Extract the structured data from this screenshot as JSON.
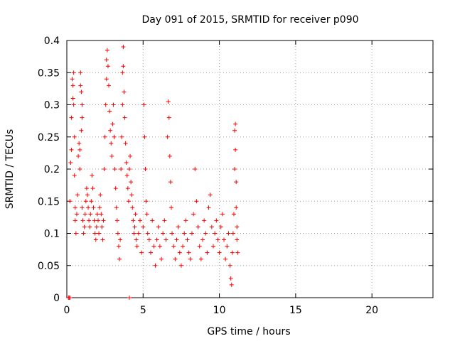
{
  "chart_data": {
    "type": "scatter",
    "title": "Day 091 of 2015, SRMTID for receiver p090",
    "xlabel": "GPS time / hours",
    "ylabel": "SRMTID / TECUs",
    "xlim": [
      0,
      24
    ],
    "ylim": [
      0,
      0.4
    ],
    "xticks": [
      0,
      5,
      10,
      15,
      20
    ],
    "xtick_labels": [
      "0",
      "5",
      "10",
      "15",
      "20"
    ],
    "yticks": [
      0,
      0.05,
      0.1,
      0.15,
      0.2,
      0.25,
      0.3,
      0.35,
      0.4
    ],
    "ytick_labels": [
      "0",
      "0.05",
      "0.1",
      "0.15",
      "0.2",
      "0.25",
      "0.3",
      "0.35",
      "0.4"
    ],
    "grid": true,
    "marker": "+",
    "series": [
      {
        "name": "SRMTID",
        "color": "#ff0000",
        "points": [
          [
            0.1,
            0.0
          ],
          [
            0.15,
            0.0
          ],
          [
            0.2,
            0.0
          ],
          [
            4.1,
            0.0
          ],
          [
            0.2,
            0.15
          ],
          [
            0.25,
            0.21
          ],
          [
            0.3,
            0.23
          ],
          [
            0.3,
            0.28
          ],
          [
            0.35,
            0.34
          ],
          [
            0.4,
            0.33
          ],
          [
            0.4,
            0.31
          ],
          [
            0.45,
            0.35
          ],
          [
            0.45,
            0.3
          ],
          [
            0.5,
            0.25
          ],
          [
            0.5,
            0.19
          ],
          [
            0.55,
            0.14
          ],
          [
            0.55,
            0.12
          ],
          [
            0.6,
            0.1
          ],
          [
            0.65,
            0.13
          ],
          [
            0.7,
            0.16
          ],
          [
            0.75,
            0.22
          ],
          [
            0.8,
            0.24
          ],
          [
            0.85,
            0.23
          ],
          [
            0.85,
            0.2
          ],
          [
            0.9,
            0.35
          ],
          [
            0.9,
            0.33
          ],
          [
            0.95,
            0.32
          ],
          [
            1.0,
            0.3
          ],
          [
            1.0,
            0.28
          ],
          [
            0.95,
            0.26
          ],
          [
            1.0,
            0.14
          ],
          [
            1.05,
            0.12
          ],
          [
            1.1,
            0.1
          ],
          [
            1.15,
            0.11
          ],
          [
            1.2,
            0.13
          ],
          [
            1.25,
            0.15
          ],
          [
            1.3,
            0.17
          ],
          [
            1.35,
            0.16
          ],
          [
            1.4,
            0.14
          ],
          [
            1.45,
            0.12
          ],
          [
            1.5,
            0.11
          ],
          [
            1.55,
            0.13
          ],
          [
            1.6,
            0.15
          ],
          [
            1.65,
            0.19
          ],
          [
            1.7,
            0.17
          ],
          [
            1.75,
            0.14
          ],
          [
            1.8,
            0.12
          ],
          [
            1.85,
            0.1
          ],
          [
            1.9,
            0.09
          ],
          [
            1.95,
            0.11
          ],
          [
            2.0,
            0.13
          ],
          [
            2.05,
            0.12
          ],
          [
            2.1,
            0.1
          ],
          [
            2.15,
            0.14
          ],
          [
            2.2,
            0.16
          ],
          [
            2.25,
            0.13
          ],
          [
            2.3,
            0.11
          ],
          [
            2.35,
            0.09
          ],
          [
            2.4,
            0.12
          ],
          [
            2.45,
            0.2
          ],
          [
            2.5,
            0.25
          ],
          [
            2.55,
            0.3
          ],
          [
            2.6,
            0.34
          ],
          [
            2.6,
            0.37
          ],
          [
            2.65,
            0.385
          ],
          [
            2.7,
            0.36
          ],
          [
            2.75,
            0.33
          ],
          [
            2.8,
            0.29
          ],
          [
            2.85,
            0.26
          ],
          [
            2.9,
            0.24
          ],
          [
            2.95,
            0.22
          ],
          [
            3.0,
            0.27
          ],
          [
            3.05,
            0.3
          ],
          [
            3.1,
            0.25
          ],
          [
            3.15,
            0.2
          ],
          [
            3.2,
            0.17
          ],
          [
            3.25,
            0.14
          ],
          [
            3.3,
            0.12
          ],
          [
            3.35,
            0.1
          ],
          [
            3.4,
            0.08
          ],
          [
            3.45,
            0.06
          ],
          [
            3.5,
            0.09
          ],
          [
            3.55,
            0.2
          ],
          [
            3.6,
            0.25
          ],
          [
            3.65,
            0.3
          ],
          [
            3.65,
            0.35
          ],
          [
            3.7,
            0.39
          ],
          [
            3.7,
            0.36
          ],
          [
            3.75,
            0.32
          ],
          [
            3.8,
            0.28
          ],
          [
            3.85,
            0.24
          ],
          [
            3.9,
            0.21
          ],
          [
            3.95,
            0.19
          ],
          [
            4.0,
            0.17
          ],
          [
            4.05,
            0.15
          ],
          [
            4.1,
            0.2
          ],
          [
            4.15,
            0.22
          ],
          [
            4.2,
            0.18
          ],
          [
            4.25,
            0.16
          ],
          [
            4.3,
            0.14
          ],
          [
            4.35,
            0.12
          ],
          [
            4.4,
            0.1
          ],
          [
            4.45,
            0.11
          ],
          [
            4.5,
            0.13
          ],
          [
            4.55,
            0.09
          ],
          [
            4.6,
            0.08
          ],
          [
            4.7,
            0.1
          ],
          [
            4.8,
            0.12
          ],
          [
            4.9,
            0.07
          ],
          [
            5.0,
            0.11
          ],
          [
            5.05,
            0.3
          ],
          [
            5.1,
            0.25
          ],
          [
            5.15,
            0.2
          ],
          [
            5.2,
            0.15
          ],
          [
            5.25,
            0.13
          ],
          [
            5.3,
            0.1
          ],
          [
            5.4,
            0.09
          ],
          [
            5.5,
            0.07
          ],
          [
            5.6,
            0.12
          ],
          [
            5.7,
            0.08
          ],
          [
            5.8,
            0.05
          ],
          [
            5.9,
            0.09
          ],
          [
            6.0,
            0.11
          ],
          [
            6.1,
            0.08
          ],
          [
            6.2,
            0.06
          ],
          [
            6.3,
            0.1
          ],
          [
            6.4,
            0.12
          ],
          [
            6.5,
            0.09
          ],
          [
            6.6,
            0.25
          ],
          [
            6.65,
            0.305
          ],
          [
            6.7,
            0.28
          ],
          [
            6.75,
            0.22
          ],
          [
            6.8,
            0.18
          ],
          [
            6.85,
            0.14
          ],
          [
            6.9,
            0.1
          ],
          [
            7.0,
            0.08
          ],
          [
            7.1,
            0.06
          ],
          [
            7.2,
            0.09
          ],
          [
            7.3,
            0.11
          ],
          [
            7.4,
            0.07
          ],
          [
            7.5,
            0.05
          ],
          [
            7.6,
            0.08
          ],
          [
            7.7,
            0.1
          ],
          [
            7.8,
            0.12
          ],
          [
            7.9,
            0.09
          ],
          [
            8.0,
            0.07
          ],
          [
            8.1,
            0.06
          ],
          [
            8.2,
            0.1
          ],
          [
            8.3,
            0.13
          ],
          [
            8.4,
            0.2
          ],
          [
            8.5,
            0.15
          ],
          [
            8.6,
            0.11
          ],
          [
            8.7,
            0.08
          ],
          [
            8.8,
            0.06
          ],
          [
            8.9,
            0.09
          ],
          [
            9.0,
            0.12
          ],
          [
            9.1,
            0.1
          ],
          [
            9.2,
            0.07
          ],
          [
            9.3,
            0.14
          ],
          [
            9.4,
            0.16
          ],
          [
            9.5,
            0.11
          ],
          [
            9.6,
            0.08
          ],
          [
            9.7,
            0.1
          ],
          [
            9.8,
            0.12
          ],
          [
            9.9,
            0.09
          ],
          [
            10.0,
            0.07
          ],
          [
            10.1,
            0.11
          ],
          [
            10.2,
            0.13
          ],
          [
            10.3,
            0.09
          ],
          [
            10.4,
            0.06
          ],
          [
            10.5,
            0.08
          ],
          [
            10.6,
            0.1
          ],
          [
            10.7,
            0.05
          ],
          [
            10.75,
            0.03
          ],
          [
            10.8,
            0.02
          ],
          [
            10.85,
            0.07
          ],
          [
            10.9,
            0.1
          ],
          [
            10.95,
            0.13
          ],
          [
            11.0,
            0.2
          ],
          [
            11.0,
            0.26
          ],
          [
            11.05,
            0.27
          ],
          [
            11.05,
            0.23
          ],
          [
            11.1,
            0.18
          ],
          [
            11.1,
            0.14
          ],
          [
            11.15,
            0.11
          ],
          [
            11.15,
            0.09
          ],
          [
            11.2,
            0.07
          ]
        ]
      }
    ]
  }
}
